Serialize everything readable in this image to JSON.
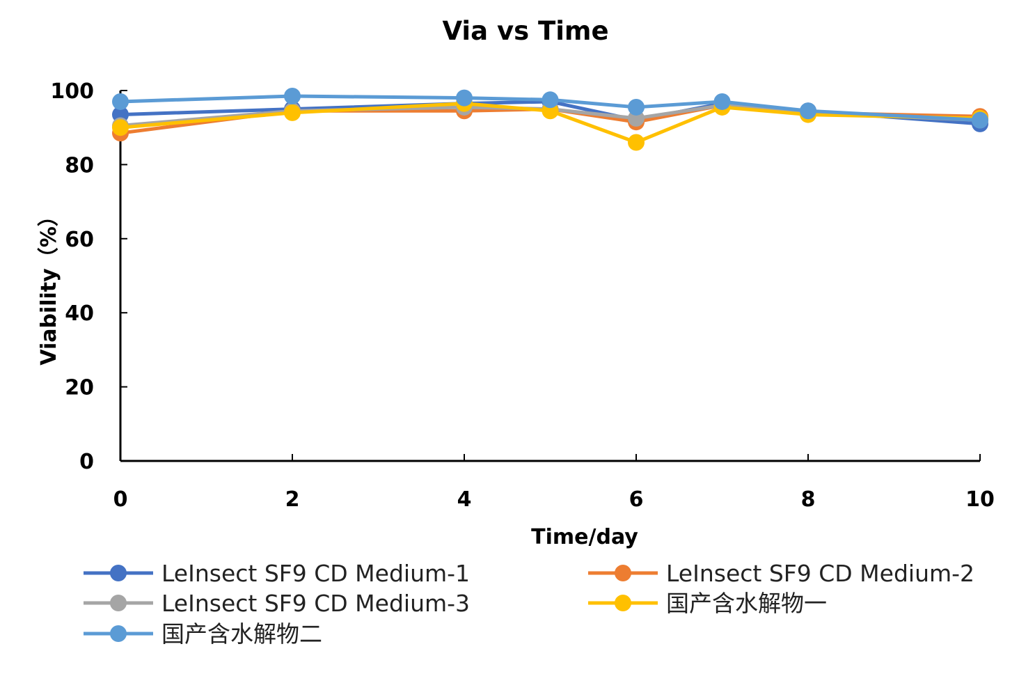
{
  "chart_data": {
    "type": "line",
    "title": "Via vs Time",
    "xlabel": "Time/day",
    "ylabel": "Viability（%）",
    "xlim": [
      0,
      10
    ],
    "ylim": [
      0,
      100
    ],
    "x_ticks": [
      0,
      2,
      4,
      6,
      8,
      10
    ],
    "y_ticks": [
      0,
      20,
      40,
      60,
      80,
      100
    ],
    "x": [
      0,
      2,
      4,
      5,
      6,
      7,
      8,
      10
    ],
    "grid": false,
    "legend_position": "bottom",
    "series": [
      {
        "name": "LeInsect SF9 CD Medium-1",
        "color": "#4472C4",
        "values": [
          93.5,
          95,
          96.5,
          97,
          92,
          96.5,
          94.5,
          91
        ]
      },
      {
        "name": "LeInsect SF9 CD Medium-2",
        "color": "#ED7D31",
        "values": [
          88.5,
          94.5,
          94.5,
          95,
          91.5,
          96,
          94,
          93
        ]
      },
      {
        "name": "LeInsect SF9 CD Medium-3",
        "color": "#A5A5A5",
        "values": [
          90.5,
          94.5,
          95.5,
          95,
          92.5,
          96,
          94,
          92
        ]
      },
      {
        "name": "国产含水解物一",
        "color": "#FFC000",
        "values": [
          90,
          94,
          96.5,
          94.5,
          86,
          95.5,
          93.5,
          92.5
        ]
      },
      {
        "name": "国产含水解物二",
        "color": "#5B9BD5",
        "values": [
          97,
          98.5,
          98,
          97.5,
          95.5,
          97,
          94.5,
          92
        ]
      }
    ]
  }
}
